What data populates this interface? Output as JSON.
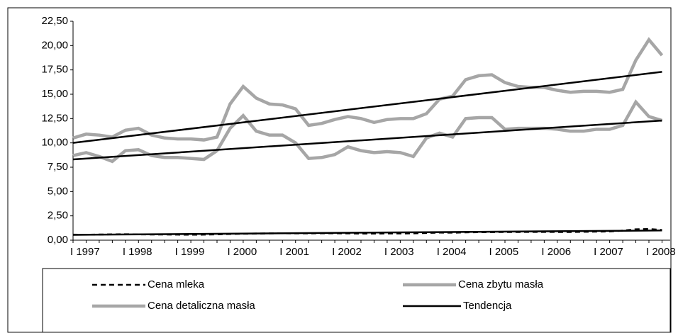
{
  "chart_data": {
    "type": "line",
    "categories": [
      "I 1997",
      null,
      null,
      null,
      "I 1998",
      null,
      null,
      null,
      "I 1999",
      null,
      null,
      null,
      "I 2000",
      null,
      null,
      null,
      "I 2001",
      null,
      null,
      null,
      "I 2002",
      null,
      null,
      null,
      "I 2003",
      null,
      null,
      null,
      "I 2004",
      null,
      null,
      null,
      "I 2005",
      null,
      null,
      null,
      "I 2006",
      null,
      null,
      null,
      "I 2007",
      null,
      null,
      null,
      "I 2008",
      null
    ],
    "series": [
      {
        "name": "Cena mleka",
        "color": "#000000",
        "line_style": "dashed",
        "values": [
          0.57,
          0.56,
          0.58,
          0.6,
          0.61,
          0.6,
          0.58,
          0.58,
          0.57,
          0.56,
          0.57,
          0.6,
          0.64,
          0.66,
          0.68,
          0.7,
          0.71,
          0.7,
          0.7,
          0.71,
          0.71,
          0.7,
          0.68,
          0.68,
          0.69,
          0.69,
          0.7,
          0.74,
          0.78,
          0.77,
          0.8,
          0.82,
          0.83,
          0.84,
          0.84,
          0.85,
          0.85,
          0.84,
          0.84,
          0.86,
          0.88,
          0.9,
          0.98,
          1.12,
          1.15,
          1.05
        ]
      },
      {
        "name": "Cena zbytu masła",
        "color": "#a6a6a6",
        "line_style": "solid",
        "values": [
          8.7,
          9.0,
          8.6,
          8.1,
          9.2,
          9.3,
          8.7,
          8.5,
          8.5,
          8.4,
          8.3,
          9.2,
          11.5,
          12.8,
          11.2,
          10.8,
          10.8,
          10.0,
          8.4,
          8.5,
          8.8,
          9.6,
          9.2,
          9.0,
          9.1,
          9.0,
          8.6,
          10.5,
          11.0,
          10.6,
          12.5,
          12.6,
          12.6,
          11.4,
          11.5,
          11.5,
          11.5,
          11.4,
          11.2,
          11.2,
          11.4,
          11.4,
          11.8,
          14.2,
          12.7,
          12.3
        ]
      },
      {
        "name": "Cena detaliczna masła",
        "color": "#a6a6a6",
        "line_style": "solid",
        "values": [
          10.5,
          10.9,
          10.8,
          10.6,
          11.3,
          11.5,
          10.8,
          10.5,
          10.4,
          10.4,
          10.3,
          10.6,
          14.0,
          15.8,
          14.6,
          14.0,
          13.9,
          13.5,
          11.8,
          12.0,
          12.4,
          12.7,
          12.5,
          12.1,
          12.4,
          12.5,
          12.5,
          13.0,
          14.5,
          14.8,
          16.5,
          16.9,
          17.0,
          16.2,
          15.8,
          15.7,
          15.7,
          15.4,
          15.2,
          15.3,
          15.3,
          15.2,
          15.5,
          18.5,
          20.6,
          19.0
        ]
      }
    ],
    "trend": {
      "name": "Tendencja",
      "color": "#000000",
      "lines": [
        [
          10.0,
          17.3
        ],
        [
          8.3,
          12.3
        ],
        [
          0.55,
          1.0
        ]
      ]
    },
    "ylim": [
      0,
      22.5
    ],
    "yticks": [
      {
        "value": 0,
        "label": "0,00"
      },
      {
        "value": 2.5,
        "label": "2,50"
      },
      {
        "value": 5,
        "label": "5,00"
      },
      {
        "value": 7.5,
        "label": "7,50"
      },
      {
        "value": 10,
        "label": "10,00"
      },
      {
        "value": 12.5,
        "label": "12,50"
      },
      {
        "value": 15,
        "label": "15,00"
      },
      {
        "value": 17.5,
        "label": "17,50"
      },
      {
        "value": 20,
        "label": "20,00"
      },
      {
        "value": 22.5,
        "label": "22,50"
      }
    ],
    "grid": false,
    "legend": "bottom"
  }
}
